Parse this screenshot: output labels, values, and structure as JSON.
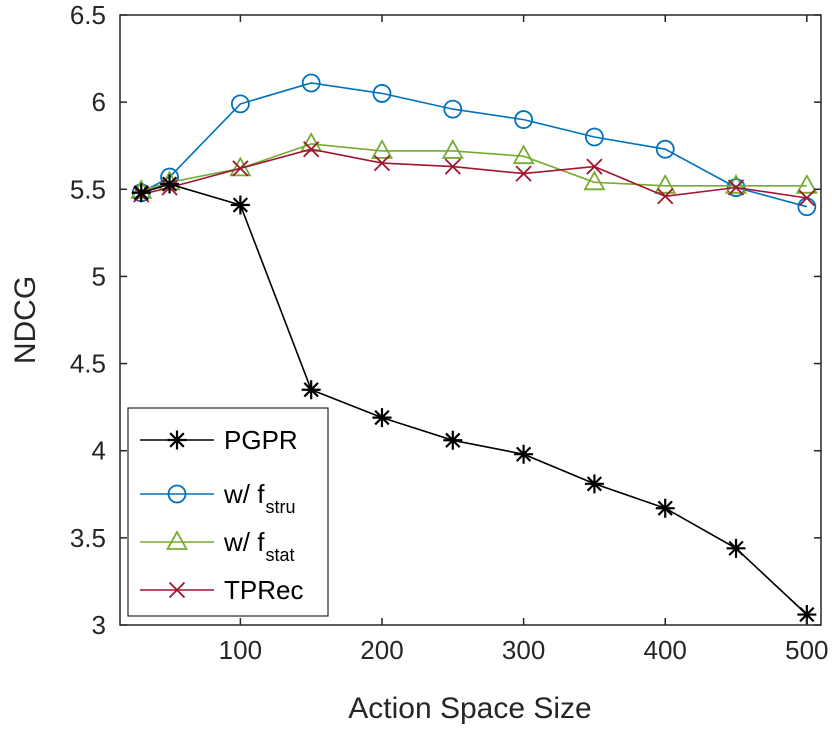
{
  "chart_data": {
    "type": "line",
    "title": "",
    "xlabel": "Action Space Size",
    "ylabel": "NDCG",
    "xlim": [
      15,
      510
    ],
    "ylim": [
      3,
      6.5
    ],
    "xticks": [
      100,
      200,
      300,
      400,
      500
    ],
    "yticks": [
      3,
      3.5,
      4,
      4.5,
      5,
      5.5,
      6,
      6.5
    ],
    "xtick_labels": [
      "100",
      "200",
      "300",
      "400",
      "500"
    ],
    "ytick_labels": [
      "3",
      "3.5",
      "4",
      "4.5",
      "5",
      "5.5",
      "6",
      "6.5"
    ],
    "grid": false,
    "legend_position": "bottom-left",
    "x": [
      30,
      50,
      100,
      150,
      200,
      250,
      300,
      350,
      400,
      450,
      500
    ],
    "series": [
      {
        "name": "PGPR",
        "label_main": "PGPR",
        "label_sub": "",
        "color": "#000000",
        "marker": "asterisk",
        "values": [
          5.48,
          5.53,
          5.41,
          4.35,
          4.19,
          4.06,
          3.98,
          3.81,
          3.67,
          3.44,
          3.06
        ]
      },
      {
        "name": "w/ f_stru",
        "label_main": "w/ f",
        "label_sub": "stru",
        "color": "#0072BD",
        "marker": "circle",
        "values": [
          5.48,
          5.57,
          5.99,
          6.11,
          6.05,
          5.96,
          5.9,
          5.8,
          5.73,
          5.51,
          5.4
        ]
      },
      {
        "name": "w/ f_stat",
        "label_main": "w/ f",
        "label_sub": "stat",
        "color": "#77AC30",
        "marker": "triangle",
        "values": [
          5.49,
          5.54,
          5.62,
          5.76,
          5.72,
          5.72,
          5.69,
          5.54,
          5.52,
          5.52,
          5.52
        ]
      },
      {
        "name": "TPRec",
        "label_main": "TPRec",
        "label_sub": "",
        "color": "#A2142F",
        "marker": "cross",
        "values": [
          5.47,
          5.51,
          5.62,
          5.73,
          5.65,
          5.63,
          5.59,
          5.63,
          5.46,
          5.51,
          5.45
        ]
      }
    ]
  }
}
